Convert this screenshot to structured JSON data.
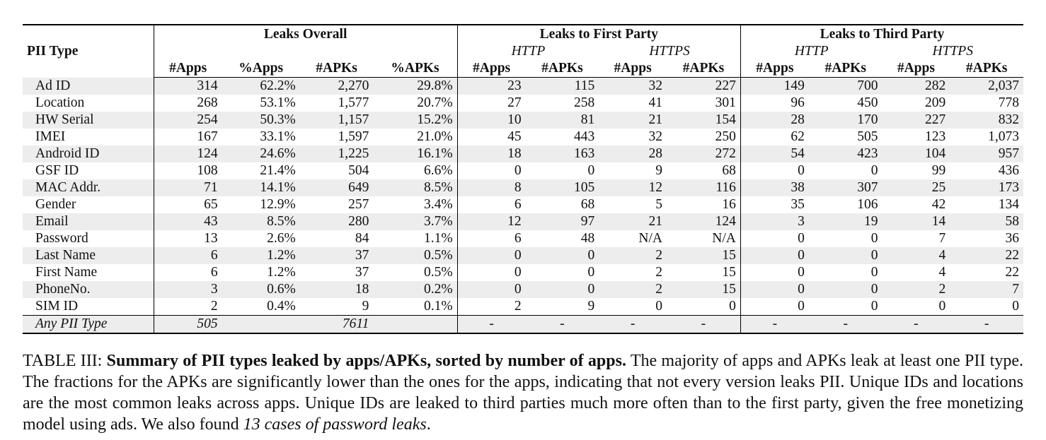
{
  "table": {
    "pii_header": "PII Type",
    "groups": {
      "overall": "Leaks Overall",
      "first_party": "Leaks to First Party",
      "third_party": "Leaks to Third Party"
    },
    "protocols": {
      "http": "HTTP",
      "https": "HTTPS"
    },
    "cols": {
      "apps": "#Apps",
      "pct_apps": "%Apps",
      "apks": "#APKs",
      "pct_apks": "%APKs"
    },
    "rows": [
      [
        "Ad ID",
        "314",
        "62.2%",
        "2,270",
        "29.8%",
        "23",
        "115",
        "32",
        "227",
        "149",
        "700",
        "282",
        "2,037"
      ],
      [
        "Location",
        "268",
        "53.1%",
        "1,577",
        "20.7%",
        "27",
        "258",
        "41",
        "301",
        "96",
        "450",
        "209",
        "778"
      ],
      [
        "HW Serial",
        "254",
        "50.3%",
        "1,157",
        "15.2%",
        "10",
        "81",
        "21",
        "154",
        "28",
        "170",
        "227",
        "832"
      ],
      [
        "IMEI",
        "167",
        "33.1%",
        "1,597",
        "21.0%",
        "45",
        "443",
        "32",
        "250",
        "62",
        "505",
        "123",
        "1,073"
      ],
      [
        "Android ID",
        "124",
        "24.6%",
        "1,225",
        "16.1%",
        "18",
        "163",
        "28",
        "272",
        "54",
        "423",
        "104",
        "957"
      ],
      [
        "GSF ID",
        "108",
        "21.4%",
        "504",
        "6.6%",
        "0",
        "0",
        "9",
        "68",
        "0",
        "0",
        "99",
        "436"
      ],
      [
        "MAC Addr.",
        "71",
        "14.1%",
        "649",
        "8.5%",
        "8",
        "105",
        "12",
        "116",
        "38",
        "307",
        "25",
        "173"
      ],
      [
        "Gender",
        "65",
        "12.9%",
        "257",
        "3.4%",
        "6",
        "68",
        "5",
        "16",
        "35",
        "106",
        "42",
        "134"
      ],
      [
        "Email",
        "43",
        "8.5%",
        "280",
        "3.7%",
        "12",
        "97",
        "21",
        "124",
        "3",
        "19",
        "14",
        "58"
      ],
      [
        "Password",
        "13",
        "2.6%",
        "84",
        "1.1%",
        "6",
        "48",
        "N/A",
        "N/A",
        "0",
        "0",
        "7",
        "36"
      ],
      [
        "Last Name",
        "6",
        "1.2%",
        "37",
        "0.5%",
        "0",
        "0",
        "2",
        "15",
        "0",
        "0",
        "4",
        "22"
      ],
      [
        "First Name",
        "6",
        "1.2%",
        "37",
        "0.5%",
        "0",
        "0",
        "2",
        "15",
        "0",
        "0",
        "4",
        "22"
      ],
      [
        "PhoneNo.",
        "3",
        "0.6%",
        "18",
        "0.2%",
        "0",
        "0",
        "2",
        "15",
        "0",
        "0",
        "2",
        "7"
      ],
      [
        "SIM ID",
        "2",
        "0.4%",
        "9",
        "0.1%",
        "2",
        "9",
        "0",
        "0",
        "0",
        "0",
        "0",
        "0"
      ]
    ],
    "total_row": [
      "Any PII Type",
      "505",
      "",
      "7611",
      "",
      "-",
      "-",
      "-",
      "-",
      "-",
      "-",
      "-",
      "-"
    ]
  },
  "caption": {
    "label": "TABLE III: ",
    "bold": "Summary of PII types leaked by apps/APKs, sorted by number of apps.",
    "text": " The majority of apps and APKs leak at least one PII type. The fractions for the APKs are significantly lower than the ones for the apps, indicating that not every version leaks PII. Unique IDs and locations are the most common leaks across apps. Unique IDs are leaked to third parties much more often than to the first party, given the free monetizing model using ads. We also found ",
    "italic": "13 cases of password leaks",
    "end": "."
  }
}
